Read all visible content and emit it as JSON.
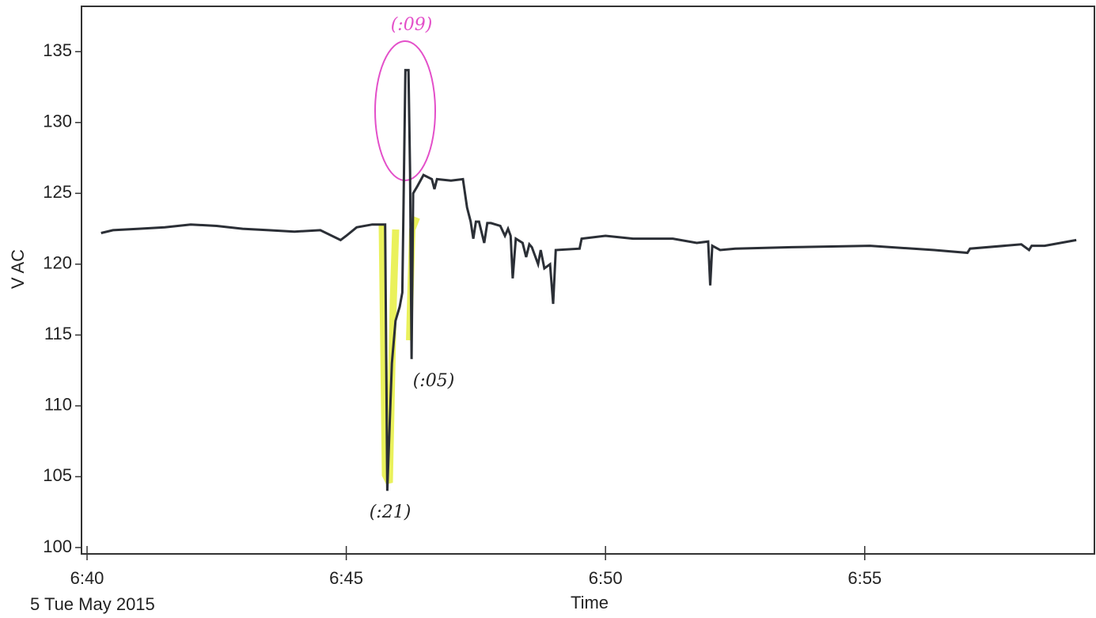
{
  "chart_data": {
    "type": "line",
    "xlabel": "Time",
    "ylabel": "V AC",
    "date_label": "5 Tue May 2015",
    "annotations": [
      "(:09)",
      "(:05)",
      "(:21)"
    ],
    "color": "#2b2f36",
    "x": [
      0.27,
      0.5,
      1.0,
      1.5,
      2.0,
      2.5,
      3.0,
      3.5,
      4.0,
      4.5,
      4.89,
      5.0,
      5.2,
      5.5,
      5.75,
      5.79,
      5.88,
      5.95,
      6.03,
      6.08,
      6.14,
      6.2,
      6.23,
      6.26,
      6.29,
      6.37,
      6.49,
      6.65,
      6.7,
      6.75,
      7.02,
      7.25,
      7.33,
      7.4,
      7.45,
      7.5,
      7.56,
      7.66,
      7.72,
      7.79,
      7.97,
      8.06,
      8.12,
      8.17,
      8.21,
      8.27,
      8.4,
      8.47,
      8.53,
      8.58,
      8.7,
      8.75,
      8.82,
      8.93,
      8.99,
      9.04,
      9.5,
      9.54,
      10.0,
      10.53,
      11.3,
      11.76,
      11.98,
      12.02,
      12.06,
      12.21,
      12.5,
      13.59,
      15.1,
      16.34,
      16.98,
      17.03,
      18.02,
      18.17,
      18.22,
      18.47,
      19.08
    ],
    "values": [
      122.2,
      122.4,
      122.5,
      122.6,
      122.8,
      122.7,
      122.5,
      122.4,
      122.3,
      122.4,
      121.7,
      122.0,
      122.6,
      122.8,
      122.8,
      104.0,
      113.0,
      116.0,
      117.0,
      118.0,
      133.7,
      133.7,
      126.5,
      113.3,
      125.0,
      125.5,
      126.3,
      126.0,
      125.3,
      126.0,
      125.9,
      126.0,
      124.0,
      123.0,
      121.8,
      123.0,
      123.0,
      121.5,
      122.9,
      122.9,
      122.7,
      122.0,
      122.5,
      122.0,
      119.0,
      121.8,
      121.5,
      120.5,
      121.4,
      121.2,
      120.0,
      121.0,
      119.7,
      120.0,
      117.2,
      121.0,
      121.1,
      121.8,
      122.0,
      121.8,
      121.8,
      121.5,
      121.6,
      118.5,
      121.3,
      121.0,
      121.1,
      121.2,
      121.3,
      121.0,
      120.8,
      121.1,
      121.4,
      121.0,
      121.3,
      121.3,
      121.7
    ],
    "xlim": [
      -0.107,
      19.43
    ],
    "xticks": [
      {
        "value": 0,
        "label": "6:40"
      },
      {
        "value": 5,
        "label": "6:45"
      },
      {
        "value": 10,
        "label": "6:50"
      },
      {
        "value": 15,
        "label": "6:55"
      }
    ],
    "ylim": [
      99.55,
      138.2
    ],
    "yticks": [
      100,
      105,
      110,
      115,
      120,
      125,
      130,
      135
    ]
  }
}
